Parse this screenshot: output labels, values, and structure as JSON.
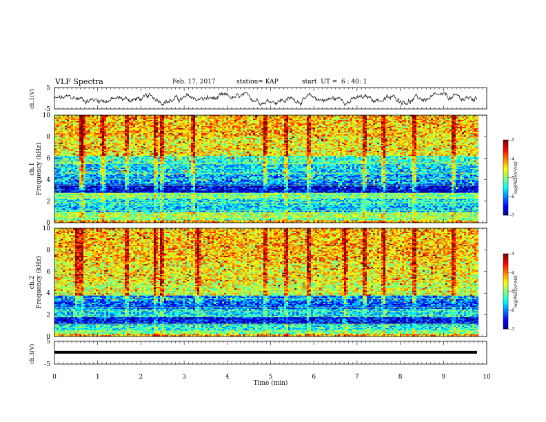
{
  "header": {
    "title": "VLF Spectra",
    "date": "Feb. 17, 2017",
    "station": "station= KAP",
    "start": "start  UT =  6 : 40: 1"
  },
  "chart_data": [
    {
      "type": "line",
      "panel": "ch1-waveform",
      "ylabel": "ch.1(V)",
      "ylim": [
        -5,
        5
      ],
      "yticks": [
        "5",
        "-5"
      ],
      "xlim": [
        0,
        9.83
      ],
      "series": [
        {
          "style": "noisy waveform",
          "mean_V": -0.4,
          "range_V": [
            -3.4,
            2.6
          ]
        }
      ]
    },
    {
      "type": "heatmap",
      "panel": "ch1-spectrogram",
      "ylabel": "ch.1\nFrequency (kHz)",
      "ylim": [
        0,
        10
      ],
      "yticks": [
        0,
        2,
        4,
        6,
        8,
        10
      ],
      "xlim": [
        0,
        9.83
      ],
      "colorbar": {
        "label": "log(PSD)(V²/Hz)",
        "range": [
          -7,
          -3
        ],
        "ticks": [
          -3,
          -4,
          -5,
          -6,
          -7
        ],
        "colormap": "jet"
      },
      "bands": [
        {
          "f": [
            0.2,
            0.5
          ],
          "log_psd": -5.0
        },
        {
          "f": [
            0.5,
            1.0
          ],
          "log_psd": -4.8
        },
        {
          "f": [
            1.0,
            1.6
          ],
          "log_psd": -5.7
        },
        {
          "f": [
            1.6,
            2.2
          ],
          "log_psd": -5.5
        },
        {
          "f": [
            2.2,
            2.8
          ],
          "log_psd": -5.0
        },
        {
          "f": [
            2.8,
            3.6
          ],
          "log_psd": -6.6
        },
        {
          "f": [
            3.6,
            4.4
          ],
          "log_psd": -5.9
        },
        {
          "f": [
            4.4,
            5.4
          ],
          "log_psd": -5.6
        },
        {
          "f": [
            5.4,
            6.2
          ],
          "log_psd": -5.3
        },
        {
          "f": [
            6.2,
            8.0
          ],
          "log_psd": -4.5
        },
        {
          "f": [
            8.0,
            10.0
          ],
          "log_psd": -4.3
        }
      ],
      "bursts_min": [
        0.58,
        0.63,
        1.1,
        1.65,
        2.3,
        2.45,
        3.2,
        4.85,
        5.35,
        5.85,
        7.15,
        7.6,
        8.3,
        9.2
      ]
    },
    {
      "type": "heatmap",
      "panel": "ch2-spectrogram",
      "ylabel": "ch.2\nFrequency (kHz)",
      "ylim": [
        0,
        10
      ],
      "yticks": [
        0,
        2,
        4,
        6,
        8,
        10
      ],
      "xlim": [
        0,
        9.83
      ],
      "colorbar": {
        "label": "log(PSD)(V²/Hz)",
        "range": [
          -7,
          -3
        ],
        "ticks": [
          -3,
          -4,
          -5,
          -6,
          -7
        ],
        "colormap": "jet"
      },
      "bands": [
        {
          "f": [
            0.2,
            0.6
          ],
          "log_psd": -5.0
        },
        {
          "f": [
            0.6,
            1.1
          ],
          "log_psd": -5.4
        },
        {
          "f": [
            1.1,
            1.8
          ],
          "log_psd": -6.5
        },
        {
          "f": [
            1.8,
            2.6
          ],
          "log_psd": -5.6
        },
        {
          "f": [
            2.6,
            3.2
          ],
          "log_psd": -6.2
        },
        {
          "f": [
            3.2,
            3.8
          ],
          "log_psd": -6.0
        },
        {
          "f": [
            3.8,
            5.0
          ],
          "log_psd": -4.7
        },
        {
          "f": [
            5.0,
            7.0
          ],
          "log_psd": -4.5
        },
        {
          "f": [
            7.0,
            10.0
          ],
          "log_psd": -4.3
        }
      ],
      "bursts_min": [
        0.5,
        0.6,
        1.65,
        2.3,
        2.45,
        3.3,
        4.85,
        5.35,
        5.85,
        6.7,
        7.15,
        7.6,
        8.3,
        9.2
      ]
    },
    {
      "type": "line",
      "panel": "ch3-waveform",
      "ylabel": "ch.3(V)",
      "ylim": [
        -5,
        5
      ],
      "yticks": [
        "5",
        "-5"
      ],
      "xlim": [
        0,
        9.83
      ],
      "series": [
        {
          "style": "constant",
          "value_V": 0.2
        }
      ]
    }
  ],
  "xaxis": {
    "label": "Time (min)",
    "range": [
      0,
      10
    ],
    "ticks": [
      0,
      1,
      2,
      3,
      4,
      5,
      6,
      7,
      8,
      9,
      10
    ]
  }
}
